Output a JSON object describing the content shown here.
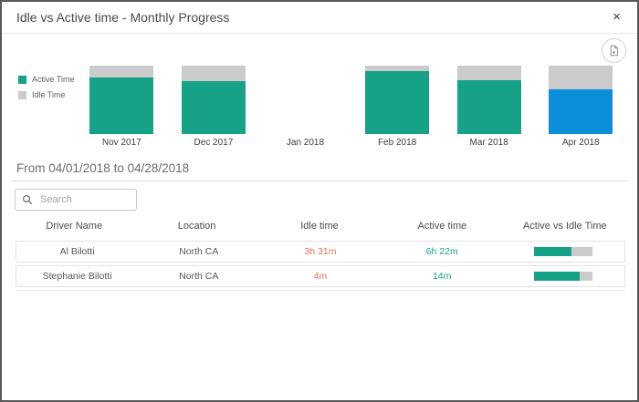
{
  "modal": {
    "title": "Idle vs Active time - Monthly Progress",
    "close_glyph": "×"
  },
  "icons": {
    "close": "close-icon",
    "export": "export-icon",
    "search": "search-icon"
  },
  "chart_data": {
    "type": "bar",
    "stacked": true,
    "unit": "percent",
    "categories": [
      "Nov 2017",
      "Dec 2017",
      "Jan 2018",
      "Feb 2018",
      "Mar 2018",
      "Apr 2018"
    ],
    "series": [
      {
        "name": "Active Time",
        "color": "#16a286",
        "values": [
          83,
          78,
          0,
          92,
          79,
          65
        ]
      },
      {
        "name": "Idle Time",
        "color": "#cbcbcb",
        "values": [
          17,
          22,
          0,
          8,
          21,
          35
        ]
      }
    ],
    "selected_category": "Apr 2018",
    "selected_active_color": "#0b8fd8",
    "ylim": [
      0,
      100
    ],
    "legend_position": "left",
    "grid": false
  },
  "filter": {
    "date_range": "From 04/01/2018 to 04/28/2018"
  },
  "search": {
    "placeholder": "Search"
  },
  "table": {
    "columns": [
      "Driver Name",
      "Location",
      "Idle time",
      "Active time",
      "Active vs Idle Time"
    ],
    "rows": [
      {
        "driver": "Al Bilotti",
        "location": "North CA",
        "idle": "3h 31m",
        "active": "6h 22m",
        "active_pct": 64
      },
      {
        "driver": "Stephanie Bilotti",
        "location": "North CA",
        "idle": "4m",
        "active": "14m",
        "active_pct": 78
      }
    ],
    "progress_fill_color": "#16a286",
    "progress_track_color": "#cbcbcb"
  },
  "colors": {
    "active": "#16a286",
    "idle": "#cbcbcb",
    "selected": "#0b8fd8",
    "idle_text": "#e2724f",
    "active_text": "#16a286"
  }
}
